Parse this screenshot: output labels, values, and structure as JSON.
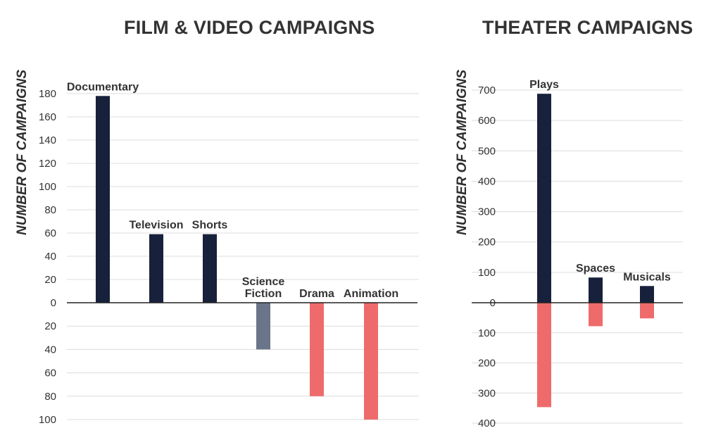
{
  "chart_data": [
    {
      "type": "bar",
      "title": "FILM & VIDEO CAMPAIGNS",
      "ylabel": "NUMBER OF CAMPAIGNS",
      "categories": [
        "Documentary",
        "Television",
        "Shorts",
        "Science Fiction",
        "Drama",
        "Animation"
      ],
      "category_labels": [
        [
          "Documentary"
        ],
        [
          "Television"
        ],
        [
          "Shorts"
        ],
        [
          "Science",
          "Fiction"
        ],
        [
          "Drama"
        ],
        [
          "Animation"
        ]
      ],
      "series": [
        {
          "values": [
            178,
            59,
            59,
            0,
            0,
            0
          ],
          "color": "#17213b"
        },
        {
          "values": [
            0,
            0,
            0,
            -40,
            0,
            0
          ],
          "color": "#6b7589"
        },
        {
          "values": [
            0,
            0,
            0,
            0,
            -80,
            -100
          ],
          "color": "#ef6b6b"
        }
      ],
      "yticks": [
        180,
        160,
        140,
        120,
        100,
        80,
        60,
        40,
        20,
        0,
        -20,
        -40,
        -60,
        -80,
        -100
      ],
      "ytick_labels": [
        "180",
        "160",
        "140",
        "120",
        "100",
        "80",
        "60",
        "40",
        "20",
        "0",
        "20",
        "40",
        "60",
        "80",
        "100"
      ],
      "ylim": [
        -100,
        180
      ],
      "grid": true
    },
    {
      "type": "bar",
      "title": "THEATER CAMPAIGNS",
      "ylabel": "NUMBER OF CAMPAIGNS",
      "categories": [
        "Plays",
        "Spaces",
        "Musicals"
      ],
      "category_labels": [
        [
          "Plays"
        ],
        [
          "Spaces"
        ],
        [
          "Musicals"
        ]
      ],
      "series": [
        {
          "values": [
            688,
            83,
            55
          ],
          "color": "#17213b"
        },
        {
          "values": [
            0,
            -14,
            -20
          ],
          "color": "#6b7589"
        },
        {
          "values": [
            -347,
            -78,
            -52
          ],
          "color": "#ef6b6b"
        }
      ],
      "yticks": [
        700,
        600,
        500,
        400,
        300,
        200,
        100,
        0,
        -100,
        -200,
        -300,
        -400
      ],
      "ytick_labels": [
        "700",
        "600",
        "500",
        "400",
        "300",
        "200",
        "100",
        "0",
        "100",
        "200",
        "300",
        "400"
      ],
      "ylim": [
        -400,
        700
      ],
      "grid": true
    }
  ]
}
